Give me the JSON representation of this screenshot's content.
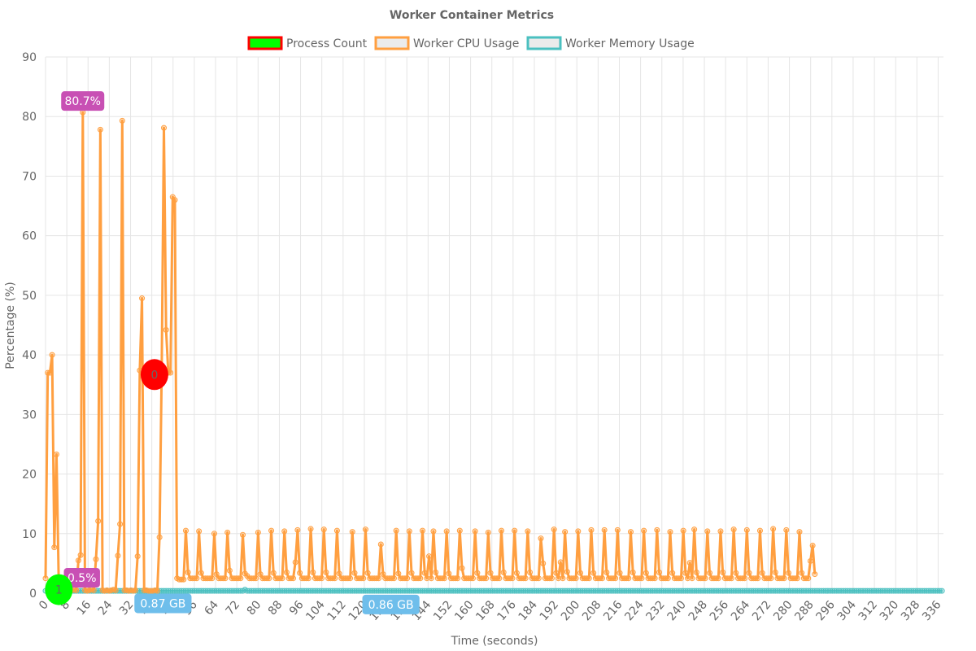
{
  "chart_data": {
    "type": "line",
    "title": "Worker Container Metrics",
    "xlabel": "Time (seconds)",
    "ylabel": "Percentage (%)",
    "ylim": [
      0,
      90
    ],
    "y_ticks": [
      0,
      10,
      20,
      30,
      40,
      50,
      60,
      70,
      80,
      90
    ],
    "x_tick_labels": [
      "0",
      "8",
      "16",
      "24",
      "32",
      "40",
      "48",
      "56",
      "64",
      "72",
      "80",
      "88",
      "96",
      "104",
      "112",
      "120",
      "128",
      "136",
      "144",
      "152",
      "160",
      "168",
      "176",
      "184",
      "192",
      "200",
      "208",
      "216",
      "224",
      "232",
      "240",
      "248",
      "256",
      "264",
      "272",
      "280",
      "288",
      "296",
      "304",
      "312",
      "320",
      "328",
      "336"
    ],
    "grid": true,
    "legend_position": "top",
    "legend": [
      {
        "label": "Process Count",
        "fill": "#00ff00",
        "stroke": "#ff0000"
      },
      {
        "label": "Worker CPU Usage",
        "fill": "#ebebeb",
        "stroke": "#ff9f40"
      },
      {
        "label": "Worker Memory Usage",
        "fill": "#ebebeb",
        "stroke": "#4bc0c0"
      }
    ],
    "colors": {
      "cpu": "#ff9f40",
      "memory": "#4bc0c0",
      "process_fill": "#00ff00",
      "process_red": "#ff0000",
      "badge_cpu": "#c850b4",
      "badge_mem": "#6ebeeb"
    },
    "series": [
      {
        "name": "Worker CPU Usage",
        "x_start": 0,
        "x_step": 0.825,
        "values": [
          2.5,
          37,
          37,
          40,
          7.7,
          23.3,
          2.2,
          2.5,
          2,
          1.2,
          0.5,
          0.8,
          0.5,
          0.6,
          0.5,
          5.5,
          6.4,
          80.7,
          0.5,
          0.4,
          0.5,
          0.6,
          0.5,
          5.7,
          12.1,
          77.8,
          0.5,
          0.4,
          0.5,
          0.4,
          0.5,
          0.6,
          0.5,
          6.3,
          11.6,
          79.3,
          0.5,
          0.5,
          0.4,
          0.5,
          0.4,
          0.5,
          6.2,
          37.4,
          49.5,
          0.5,
          0.5,
          0.4,
          0.4,
          0.4,
          0.5,
          0.4,
          9.4,
          37.5,
          78.1,
          44.2,
          37,
          37,
          66.5,
          66,
          2.5,
          2.3,
          2.3,
          2.3,
          10.5,
          3.5,
          2.5,
          2.5,
          2.5,
          2.5,
          10.4,
          3.4,
          2.5,
          2.5,
          2.5,
          2.5,
          2.5,
          10,
          3.2,
          2.5,
          2.5,
          2.5,
          2.5,
          10.2,
          3.8,
          2.5,
          2.5,
          2.5,
          2.5,
          2.5,
          9.8,
          3.3,
          2.9,
          2.5,
          2.5,
          2.5,
          2.5,
          10.2,
          3.2,
          2.5,
          2.5,
          2.5,
          2.5,
          10.5,
          3.4,
          2.5,
          2.5,
          2.5,
          2.5,
          10.4,
          3.5,
          2.5,
          2.5,
          2.5,
          5.2,
          10.6,
          3.4,
          2.5,
          2.5,
          2.5,
          2.5,
          10.8,
          3.5,
          2.5,
          2.5,
          2.5,
          2.5,
          10.7,
          3.5,
          2.5,
          2.5,
          2.5,
          2.5,
          10.5,
          3.3,
          2.5,
          2.5,
          2.5,
          2.5,
          2.5,
          10.3,
          3.4,
          2.5,
          2.5,
          2.5,
          2.5,
          10.7,
          3.4,
          2.5,
          2.5,
          2.5,
          2.5,
          2.5,
          8.2,
          3.2,
          2.5,
          2.5,
          2.5,
          2.5,
          2.5,
          10.5,
          3.3,
          2.5,
          2.5,
          2.5,
          2.5,
          10.4,
          3.4,
          2.5,
          2.5,
          2.5,
          2.5,
          10.5,
          3.4,
          2.5,
          6.2,
          2.5,
          10.4,
          3.5,
          2.5,
          2.5,
          2.5,
          2.5,
          10.4,
          3.3,
          2.5,
          2.5,
          2.5,
          2.5,
          10.5,
          4.2,
          2.5,
          2.5,
          2.5,
          2.5,
          2.5,
          10.4,
          3.4,
          2.5,
          2.5,
          2.5,
          2.5,
          10.2,
          3.4,
          2.5,
          2.5,
          2.5,
          2.5,
          10.5,
          3.5,
          2.5,
          2.5,
          2.5,
          2.5,
          10.5,
          3.4,
          2.5,
          2.5,
          2.5,
          2.5,
          10.4,
          3.5,
          2.5,
          2.5,
          2.5,
          2.5,
          9.2,
          5,
          2.5,
          2.5,
          2.5,
          2.5,
          10.7,
          3.4,
          2.5,
          5.2,
          2.5,
          10.3,
          3.6,
          2.5,
          2.5,
          2.5,
          2.5,
          10.4,
          3.4,
          2.5,
          2.5,
          2.5,
          2.5,
          10.6,
          3.4,
          2.5,
          2.5,
          2.5,
          2.5,
          10.6,
          3.5,
          2.5,
          2.5,
          2.5,
          2.5,
          10.6,
          3.4,
          2.5,
          2.5,
          2.5,
          2.5,
          10.3,
          3.5,
          2.5,
          2.5,
          2.5,
          2.5,
          10.5,
          3.4,
          2.5,
          2.5,
          2.5,
          2.5,
          10.6,
          3.5,
          2.5,
          2.5,
          2.5,
          2.5,
          10.3,
          3.4,
          2.5,
          2.5,
          2.5,
          2.5,
          10.5,
          3.4,
          2.5,
          5.1,
          2.5,
          10.7,
          3.5,
          2.5,
          2.5,
          2.5,
          2.5,
          10.4,
          3.4,
          2.5,
          2.5,
          2.5,
          2.5,
          10.4,
          3.5,
          2.5,
          2.5,
          2.5,
          2.5,
          10.7,
          3.4,
          2.5,
          2.5,
          2.5,
          2.5,
          10.6,
          3.4,
          2.5,
          2.5,
          2.5,
          2.5,
          10.5,
          3.4,
          2.5,
          2.5,
          2.5,
          2.5,
          10.8,
          3.5,
          2.5,
          2.5,
          2.5,
          2.5,
          10.6,
          3.4,
          2.5,
          2.5,
          2.5,
          2.5,
          10.3,
          3.4,
          2.5,
          2.5,
          2.5,
          5.4,
          8,
          3.2
        ]
      },
      {
        "name": "Worker Memory Usage",
        "x_start": 0,
        "x_step": 0.825,
        "constant": 0.4,
        "count": 410,
        "bumps": [
          [
            91,
            0.6
          ]
        ]
      }
    ],
    "annotations": [
      {
        "kind": "badge",
        "text": "80.7%",
        "x": 14.0,
        "y": 82.6,
        "series": "cpu"
      },
      {
        "kind": "badge",
        "text": "0.5%",
        "x": 13.7,
        "y": 2.6,
        "series": "cpu"
      },
      {
        "kind": "badge",
        "text": "0.87 GB",
        "x": 44.2,
        "y": -1.7,
        "series": "memory"
      },
      {
        "kind": "badge",
        "text": "0.86 GB",
        "x": 130.0,
        "y": -1.9,
        "series": "memory"
      },
      {
        "kind": "bubble",
        "text": "1",
        "x": 5.0,
        "y": 0.6,
        "fill": "#00ff00"
      },
      {
        "kind": "bubble",
        "text": "0",
        "x": 41.0,
        "y": 36.7,
        "fill": "#ff0000"
      }
    ]
  }
}
